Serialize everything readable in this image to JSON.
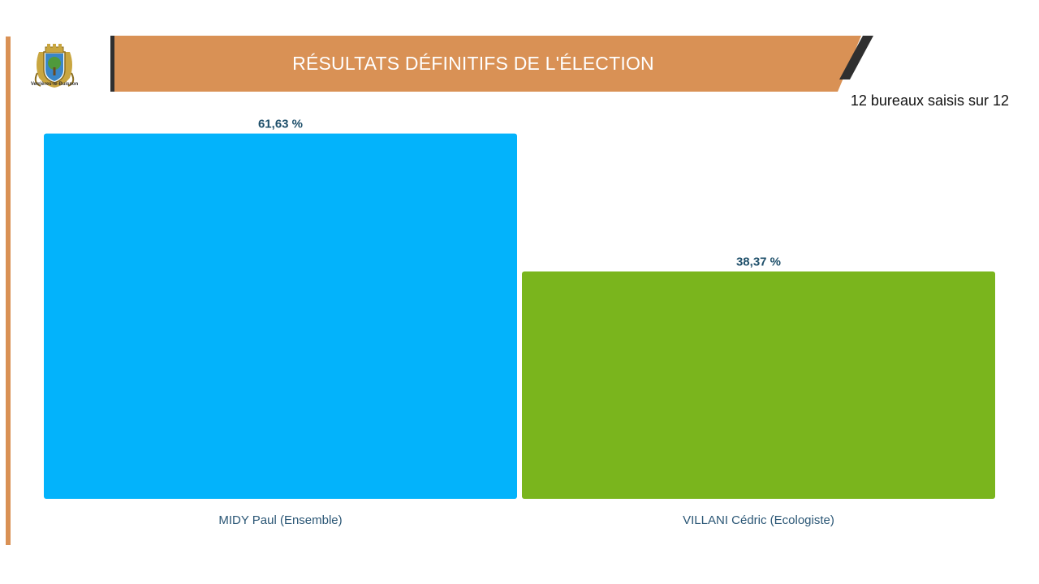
{
  "header": {
    "title": "RÉSULTATS DÉFINITIFS DE L'ÉLECTION",
    "logo_caption": "Verrières-le-Buisson",
    "banner_color": "#d99155",
    "accent_color": "#2f2f2f"
  },
  "status": {
    "bureaux_text": "12 bureaux saisis sur 12"
  },
  "chart_data": {
    "type": "bar",
    "categories": [
      "MIDY Paul (Ensemble)",
      "VILLANI Cédric (Ecologiste)"
    ],
    "values": [
      61.63,
      38.37
    ],
    "value_labels": [
      "61,63 %",
      "38,37 %"
    ],
    "colors": [
      "#03b3fb",
      "#7ab51d"
    ],
    "ylim": [
      0,
      65
    ],
    "grid": false,
    "legend": "none"
  }
}
